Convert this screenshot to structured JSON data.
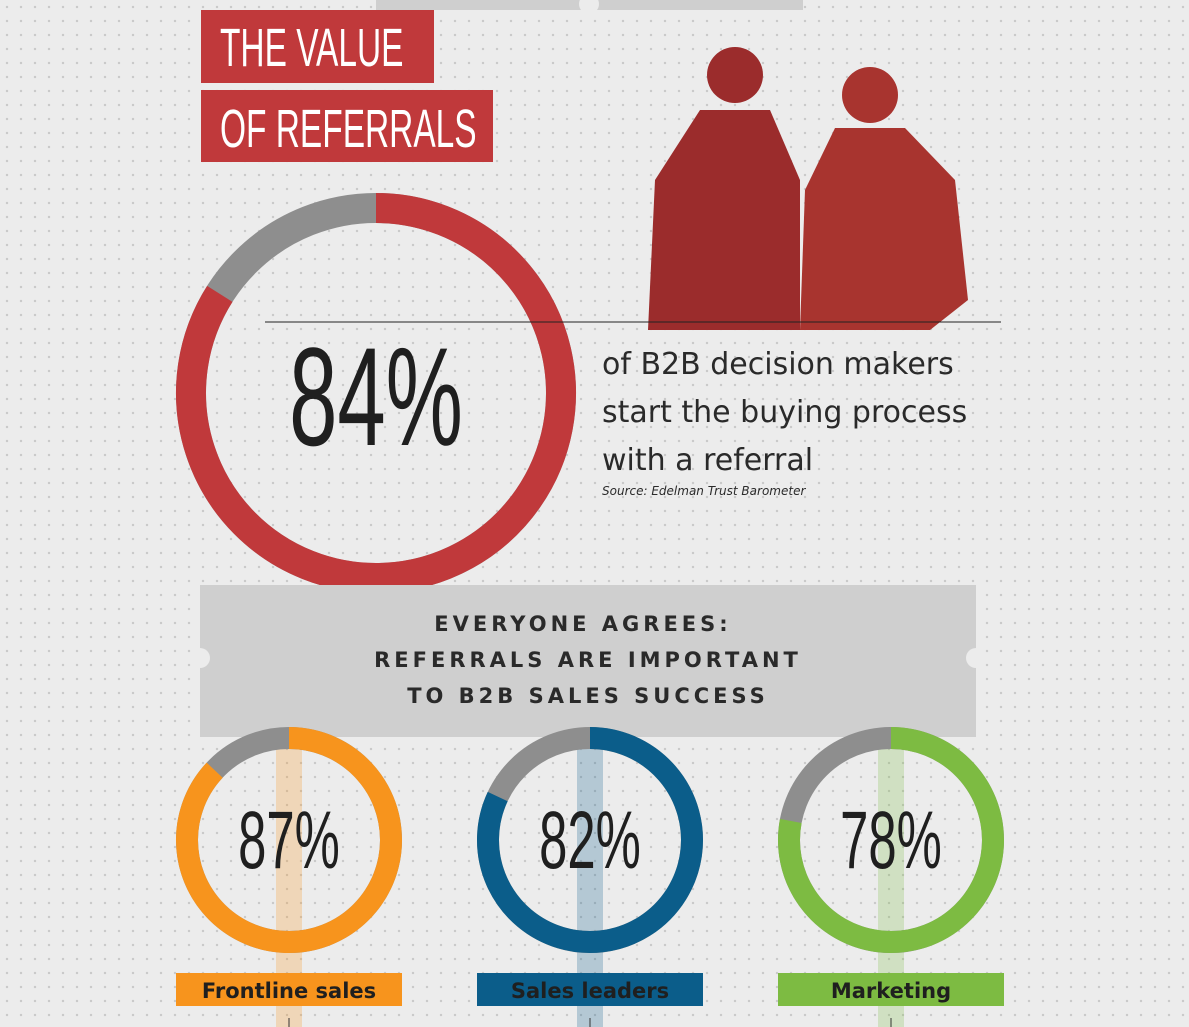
{
  "header": {
    "title_line1": "THE VALUE",
    "title_line2": "OF REFERRALS"
  },
  "hero": {
    "value": 84,
    "value_label": "84%",
    "color": "#c0393b",
    "text_lines": [
      "of B2B decision makers",
      "start the buying process",
      "with a referral"
    ],
    "source": "Source: Edelman Trust Barometer"
  },
  "banner": {
    "lines": [
      "EVERYONE AGREES:",
      "REFERRALS ARE IMPORTANT",
      "TO B2B SALES SUCCESS"
    ]
  },
  "groups": [
    {
      "name": "Frontline sales",
      "value": 87,
      "value_label": "87%",
      "color": "#f7941d"
    },
    {
      "name": "Sales leaders",
      "value": 82,
      "value_label": "82%",
      "color": "#0b5d8a"
    },
    {
      "name": "Marketing",
      "value": 78,
      "value_label": "78%",
      "color": "#7dbb42"
    }
  ]
}
